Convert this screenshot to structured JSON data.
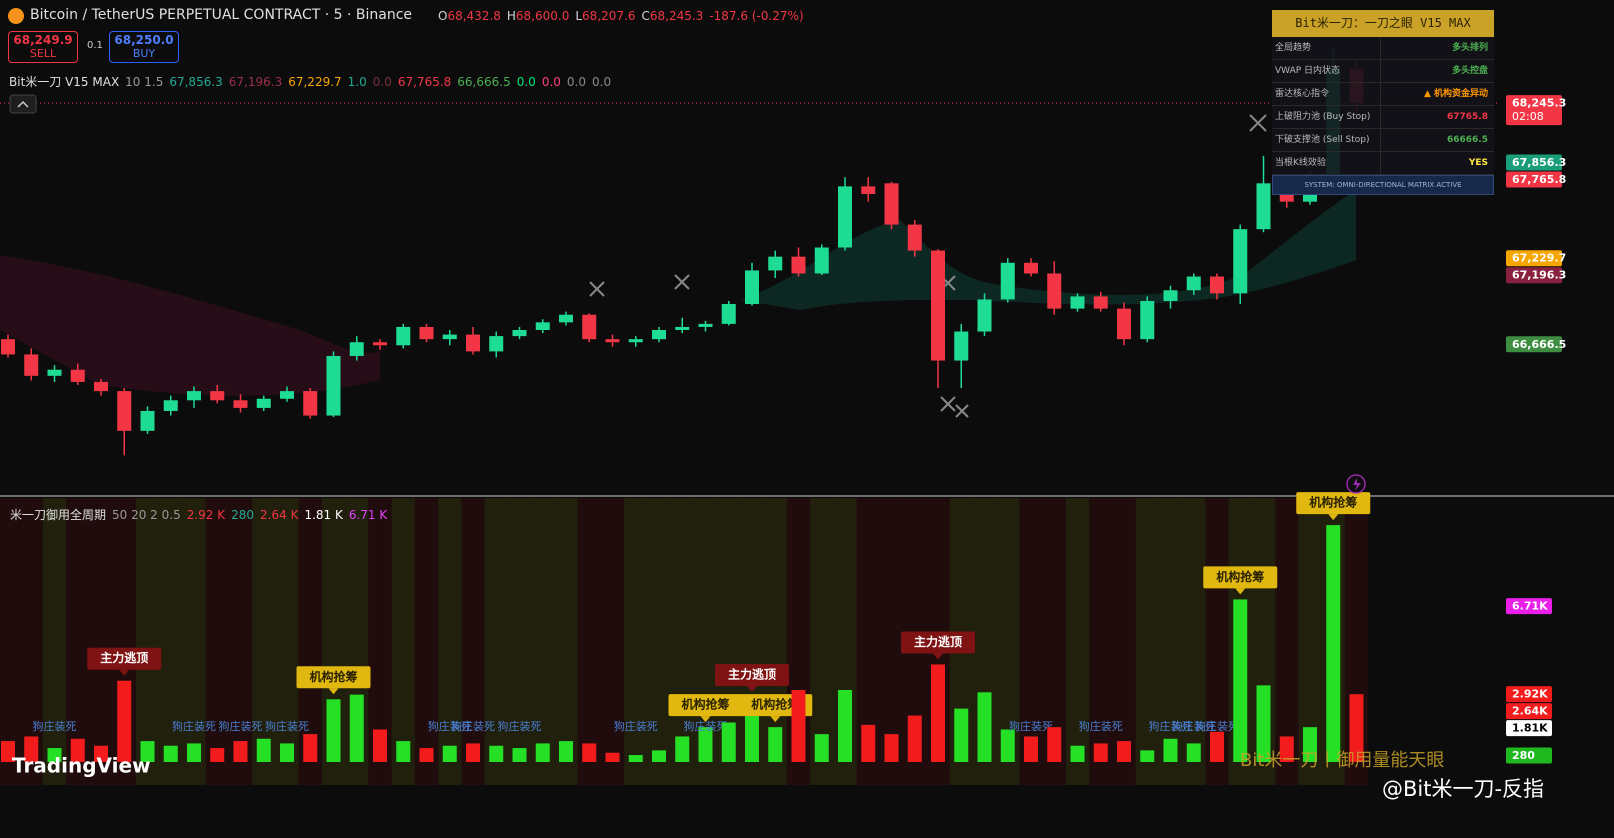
{
  "header": {
    "symbol": "Bitcoin / TetherUS PERPETUAL CONTRACT · 5 · Binance",
    "ohlc": [
      {
        "key": "O",
        "value": "68,432.8"
      },
      {
        "key": "H",
        "value": "68,600.0"
      },
      {
        "key": "L",
        "value": "68,207.6"
      },
      {
        "key": "C",
        "value": "68,245.3"
      }
    ],
    "change": "-187.6 (-0.27%)",
    "value_color": "#f23645"
  },
  "trade": {
    "sell_price": "68,249.9",
    "sell": "SELL",
    "qty": "0.1",
    "buy_price": "68,250.0",
    "buy": "BUY"
  },
  "indicator": {
    "name": "Bit米一刀 V15 MAX",
    "params": "10 1.5",
    "values": [
      {
        "text": "67,856.3",
        "color": "#22ab94"
      },
      {
        "text": "67,196.3",
        "color": "#9c2e4a"
      },
      {
        "text": "67,229.7",
        "color": "#f7a600"
      },
      {
        "text": "1.0",
        "color": "#22ab94"
      },
      {
        "text": "0.0",
        "color": "#7a2f3d"
      },
      {
        "text": "67,765.8",
        "color": "#f23645"
      },
      {
        "text": "66,666.5",
        "color": "#4caf50"
      },
      {
        "text": "0.0",
        "color": "#00e676"
      },
      {
        "text": "0.0",
        "color": "#ff4081"
      },
      {
        "text": "0.0",
        "color": "#888888"
      },
      {
        "text": "0.0",
        "color": "#888888"
      }
    ]
  },
  "panel": {
    "title": "Bit米一刀：一刀之眼 V15 MAX",
    "rows": [
      [
        "全局趋势",
        "多头排列"
      ],
      [
        "VWAP 日内状态",
        "多头控盘"
      ],
      [
        "雷达核心指令",
        "▲ 机构资金异动"
      ],
      [
        "上破阻力池 (Buy Stop)",
        "67765.8"
      ],
      [
        "下破支撑池 (Sell Stop)",
        "66666.5"
      ],
      [
        "当根K线效验",
        "YES"
      ]
    ],
    "row_colors": [
      "#4caf50",
      "#4caf50",
      "#ff9800",
      "#f23645",
      "#4caf50",
      "#ffeb3b"
    ],
    "footer": "SYSTEM: OMNI-DIRECTIONAL MATRIX ACTIVE"
  },
  "watermarks": {
    "tradingview": "TradingView",
    "brand": "Bit米一刀丨御用量能天眼",
    "handle": "@Bit米一刀-反指"
  },
  "chart_data": [
    {
      "type": "candlestick",
      "up_color": "#1fdc95",
      "down_color": "#f23645",
      "ylim": [
        65680,
        68920
      ],
      "open": [
        66700,
        66600,
        66460,
        66500,
        66420,
        66360,
        66100,
        66230,
        66300,
        66360,
        66300,
        66250,
        66310,
        66360,
        66200,
        66590,
        66680,
        66660,
        66780,
        66700,
        66730,
        66620,
        66720,
        66760,
        66810,
        66860,
        66700,
        66680,
        66700,
        66760,
        66780,
        66800,
        66930,
        67150,
        67240,
        67130,
        67300,
        67700,
        67720,
        67450,
        67280,
        66560,
        66750,
        66960,
        67200,
        67130,
        66900,
        66980,
        66900,
        66700,
        66950,
        67020,
        67110,
        67000,
        67420,
        67720,
        67600,
        67740,
        68470
      ],
      "high": [
        66730,
        66640,
        66530,
        66540,
        66440,
        66380,
        66260,
        66330,
        66390,
        66400,
        66340,
        66330,
        66390,
        66380,
        66620,
        66720,
        66700,
        66800,
        66800,
        66760,
        66780,
        66750,
        66780,
        66830,
        66880,
        66870,
        66730,
        66720,
        66780,
        66840,
        66820,
        66950,
        67200,
        67280,
        67300,
        67320,
        67760,
        67760,
        67730,
        67480,
        67290,
        66800,
        67000,
        67230,
        67230,
        67210,
        67000,
        67010,
        66940,
        66980,
        67050,
        67130,
        67130,
        67450,
        67900,
        67780,
        67800,
        68600,
        68520
      ],
      "low": [
        66580,
        66430,
        66420,
        66400,
        66330,
        65940,
        66080,
        66200,
        66250,
        66280,
        66220,
        66230,
        66290,
        66180,
        66190,
        66560,
        66630,
        66640,
        66680,
        66660,
        66600,
        66580,
        66700,
        66740,
        66790,
        66680,
        66650,
        66650,
        66680,
        66740,
        66750,
        66790,
        66920,
        67100,
        67110,
        67120,
        67280,
        67600,
        67420,
        67240,
        66380,
        66380,
        66720,
        66940,
        67110,
        66860,
        66880,
        66880,
        66660,
        66680,
        66900,
        66990,
        66960,
        66930,
        67400,
        67560,
        67580,
        67700,
        68180
      ],
      "close": [
        66600,
        66460,
        66500,
        66420,
        66360,
        66100,
        66230,
        66300,
        66360,
        66300,
        66250,
        66310,
        66360,
        66200,
        66590,
        66680,
        66660,
        66780,
        66700,
        66730,
        66620,
        66720,
        66760,
        66810,
        66860,
        66700,
        66680,
        66700,
        66760,
        66780,
        66800,
        66930,
        67150,
        67240,
        67130,
        67300,
        67700,
        67650,
        67450,
        67280,
        66560,
        66750,
        66960,
        67200,
        67130,
        66900,
        66980,
        66900,
        66700,
        66950,
        67020,
        67110,
        67000,
        67420,
        67720,
        67600,
        67780,
        68470,
        68245.3
      ],
      "price_labels": [
        {
          "value": 68245.3,
          "label": "68,245.3"
        },
        {
          "value": 67856.3,
          "label": "67,856.3"
        },
        {
          "value": 67765.8,
          "label": "67,765.8"
        },
        {
          "value": 67229.7,
          "label": "67,229.7"
        },
        {
          "value": 67196.3,
          "label": "67,196.3"
        },
        {
          "value": 66666.5,
          "label": "66,666.5"
        }
      ],
      "price_label_colors": [
        "#f23645",
        "#1a9e7a",
        "#f23645",
        "#f7a600",
        "#8a2040",
        "#3e8e41"
      ],
      "countdown": "02:08"
    },
    {
      "type": "bar",
      "title": "米一刀御用全周期",
      "params": "50 20 2 0.5",
      "up_color": "#25e025",
      "down_color": "#f21c1c",
      "ylim": [
        0,
        11280
      ],
      "legend": [
        {
          "text": "2.92 K",
          "color": "#f23645"
        },
        {
          "text": "280",
          "color": "#22ab94"
        },
        {
          "text": "2.64 K",
          "color": "#f23645"
        },
        {
          "text": "1.81 K",
          "color": "#ffffff"
        },
        {
          "text": "6.71 K",
          "color": "#e040fb"
        }
      ],
      "values": [
        900,
        1100,
        600,
        1000,
        700,
        3500,
        900,
        700,
        800,
        600,
        900,
        1000,
        800,
        1200,
        2700,
        2900,
        1400,
        900,
        600,
        700,
        800,
        700,
        600,
        800,
        900,
        800,
        400,
        300,
        500,
        1100,
        1500,
        1700,
        2800,
        1500,
        3100,
        1200,
        3100,
        1600,
        1200,
        2000,
        4200,
        2300,
        3000,
        1400,
        1100,
        1500,
        700,
        800,
        900,
        500,
        1000,
        800,
        1300,
        7000,
        3300,
        1100,
        1500,
        10200,
        2920
      ],
      "axis_labels": [
        {
          "value": 6710,
          "label": "6.71K"
        },
        {
          "value": 2920,
          "label": "2.92K"
        },
        {
          "value": 2640,
          "label": "2.64K"
        },
        {
          "value": 1810,
          "label": "1.81K"
        },
        280
      ],
      "axis_label_colors": [
        "#e91ee9",
        "#f21c1c",
        "#f21c1c",
        "#ffffff",
        "#1fb81f"
      ],
      "signal_types": [
        {
          "text": "主力逃顶",
          "bg": "#7f1212",
          "fg": "#ffffff"
        },
        {
          "text": "机构抢筹",
          "bg": "#e0b80f",
          "fg": "#2a2200"
        }
      ],
      "signals": [
        null,
        null,
        null,
        null,
        null,
        0,
        null,
        null,
        null,
        null,
        null,
        null,
        null,
        null,
        1,
        null,
        null,
        null,
        null,
        null,
        null,
        null,
        null,
        null,
        null,
        null,
        null,
        null,
        null,
        null,
        1,
        null,
        0,
        1,
        null,
        null,
        null,
        null,
        null,
        null,
        0,
        null,
        null,
        null,
        null,
        null,
        null,
        null,
        null,
        null,
        null,
        null,
        null,
        1,
        null,
        null,
        null,
        1,
        null
      ],
      "weak_signal": "狗庄装死",
      "weak_signal_color": "#4a7fd4",
      "weak_signals": [
        false,
        false,
        true,
        false,
        false,
        false,
        false,
        false,
        true,
        false,
        true,
        false,
        true,
        false,
        false,
        false,
        false,
        false,
        false,
        true,
        true,
        false,
        true,
        false,
        false,
        false,
        false,
        true,
        false,
        false,
        true,
        false,
        false,
        false,
        false,
        false,
        false,
        false,
        false,
        false,
        false,
        false,
        false,
        false,
        true,
        false,
        false,
        true,
        false,
        false,
        true,
        true,
        true,
        false,
        false,
        false,
        false,
        false,
        false
      ]
    }
  ]
}
